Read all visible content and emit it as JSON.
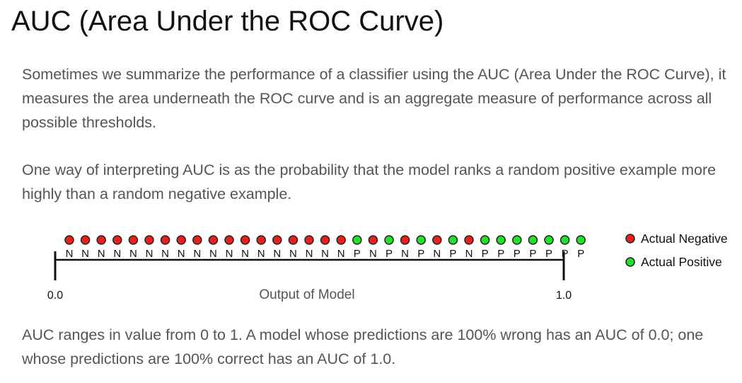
{
  "page": {
    "title": "AUC (Area Under the ROC Curve)",
    "paragraphs": [
      "Sometimes we summarize the performance of a classifier using the AUC (Area Under the ROC Curve), it measures the area underneath the ROC curve and is an aggregate measure of performance across all possible thresholds.",
      "One way of interpreting AUC is as the probability that the model ranks a random positive example more highly than a random negative example.",
      "AUC ranges in value from 0 to 1. A model whose predictions are 100% wrong has an AUC of 0.0; one whose predictions are 100% correct has an AUC of 1.0."
    ]
  },
  "diagram": {
    "examples": [
      "N",
      "N",
      "N",
      "N",
      "N",
      "N",
      "N",
      "N",
      "N",
      "N",
      "N",
      "N",
      "N",
      "N",
      "N",
      "N",
      "N",
      "N",
      "P",
      "N",
      "P",
      "N",
      "P",
      "N",
      "P",
      "N",
      "P",
      "P",
      "P",
      "P",
      "P",
      "P",
      "P"
    ],
    "axis_start": "0.0",
    "axis_end": "1.0",
    "axis_label": "Output of Model",
    "legend": [
      {
        "label": "Actual Negative",
        "class": "N",
        "color": "#e8211d"
      },
      {
        "label": "Actual Positive",
        "class": "P",
        "color": "#22e12a"
      }
    ],
    "colors": {
      "negative": "#e8211d",
      "positive": "#22e12a",
      "outline": "#222222",
      "axis": "#111111"
    }
  }
}
